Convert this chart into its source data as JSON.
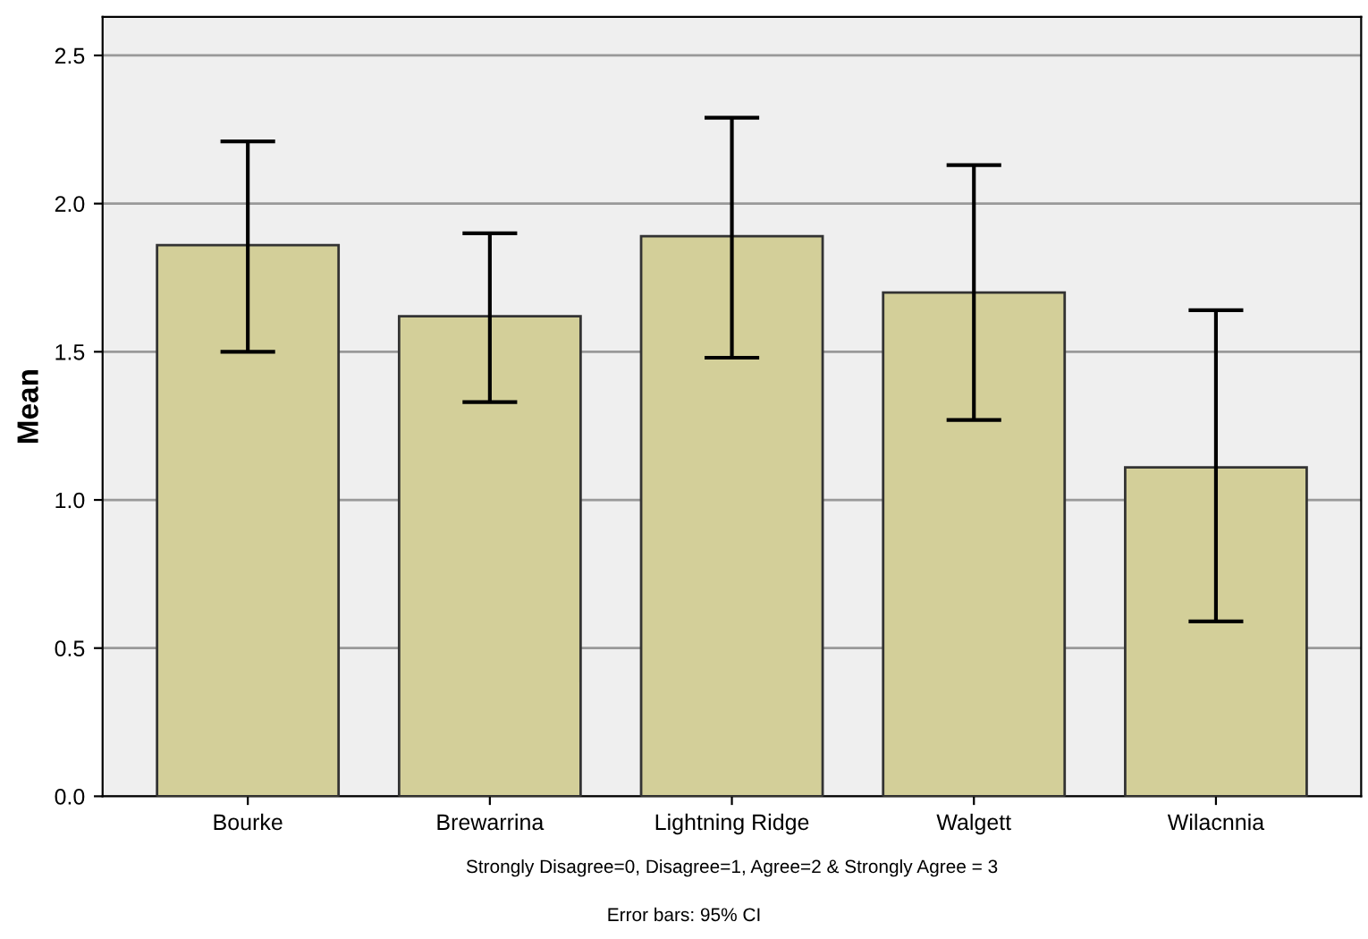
{
  "chart_data": {
    "type": "bar",
    "ylabel": "Mean",
    "xlabel": "Strongly Disagree=0, Disagree=1, Agree=2 & Strongly Agree = 3",
    "annotations": [
      "Error bars: 95% CI"
    ],
    "categories": [
      "Bourke",
      "Brewarrina",
      "Lightning Ridge",
      "Walgett",
      "Wilacnnia"
    ],
    "values": [
      1.86,
      1.62,
      1.89,
      1.7,
      1.11
    ],
    "errors": [
      [
        1.5,
        2.21
      ],
      [
        1.33,
        1.9
      ],
      [
        1.48,
        2.29
      ],
      [
        1.27,
        2.13
      ],
      [
        0.59,
        1.64
      ]
    ],
    "color": "#d3cf99",
    "ylim": [
      0,
      2.63
    ],
    "yticks": [
      {
        "value": 0,
        "label": "0.0"
      },
      {
        "value": 0.5,
        "label": "0.5"
      },
      {
        "value": 1,
        "label": "1.0"
      },
      {
        "value": 1.5,
        "label": "1.5"
      },
      {
        "value": 2,
        "label": "2.0"
      },
      {
        "value": 2.5,
        "label": "2.5"
      }
    ],
    "grid": "y",
    "legend": false
  }
}
